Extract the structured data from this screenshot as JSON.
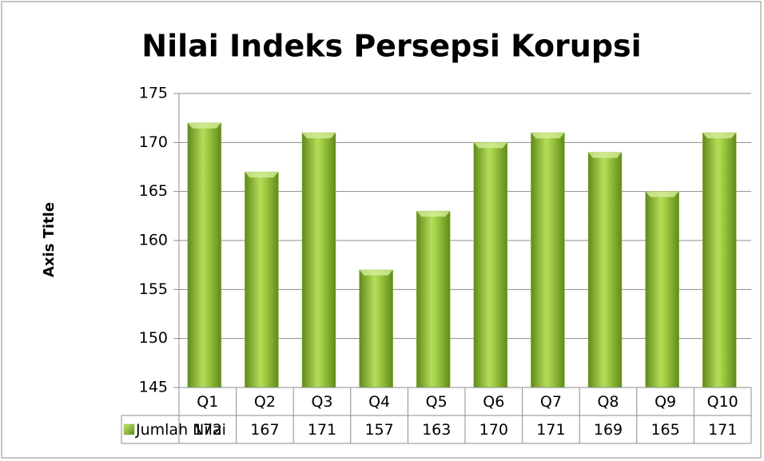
{
  "chart_data": {
    "type": "bar",
    "title": "Nilai Indeks Persepsi Korupsi",
    "y_axis_label": "Axis Title",
    "categories": [
      "Q1",
      "Q2",
      "Q3",
      "Q4",
      "Q5",
      "Q6",
      "Q7",
      "Q8",
      "Q9",
      "Q10"
    ],
    "series": [
      {
        "name": "Jumlah Nilai",
        "color": "#8cb832",
        "values": [
          172,
          167,
          171,
          157,
          163,
          170,
          171,
          169,
          165,
          171
        ]
      }
    ],
    "ylim": [
      145,
      175
    ],
    "yticks": [
      145,
      150,
      155,
      160,
      165,
      170,
      175
    ],
    "grid": true,
    "data_table": true
  }
}
